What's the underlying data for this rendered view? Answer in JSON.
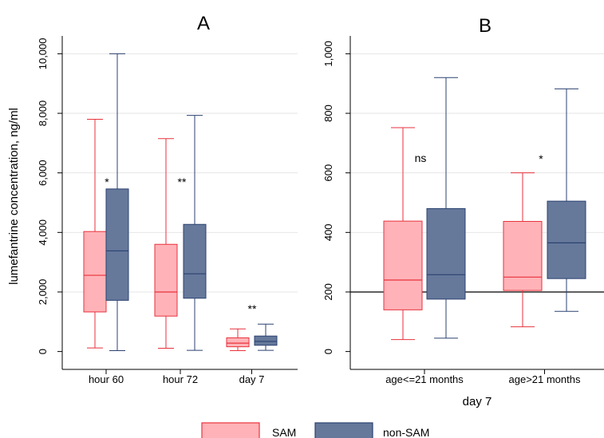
{
  "y_axis_label": "lumefantrine concentration, ng/ml",
  "legend": [
    {
      "label": "SAM",
      "fill": "#ffb3b8",
      "stroke": "#e8323c"
    },
    {
      "label": "non-SAM",
      "fill": "#66799b",
      "stroke": "#2c4270"
    }
  ],
  "colors": {
    "sam_fill": "#ffb3b8",
    "sam_line": "#e8323c",
    "nonsam_fill": "#66799b",
    "nonsam_line": "#2c4270",
    "grid": "#e6e6e6",
    "frame": "#000000",
    "reference_line": "#000000"
  },
  "chart_data": [
    {
      "type": "box",
      "title": "A",
      "xlabel": "",
      "ylabel": "lumefantrine concentration, ng/ml",
      "ylim": [
        -600,
        10600
      ],
      "yticks": [
        0,
        2000,
        4000,
        6000,
        8000,
        10000
      ],
      "ytick_labels": [
        "0",
        "2,000",
        "4,000",
        "6,000",
        "8,000",
        "10,000"
      ],
      "grid": true,
      "categories": [
        "hour 60",
        "hour 72",
        "day 7"
      ],
      "series": [
        {
          "name": "SAM",
          "boxes": [
            {
              "min": 120,
              "q1": 1330,
              "median": 2560,
              "q3": 4030,
              "max": 7800
            },
            {
              "min": 110,
              "q1": 1190,
              "median": 2000,
              "q3": 3600,
              "max": 7150
            },
            {
              "min": 30,
              "q1": 160,
              "median": 280,
              "q3": 460,
              "max": 760
            }
          ]
        },
        {
          "name": "non-SAM",
          "boxes": [
            {
              "min": 30,
              "q1": 1720,
              "median": 3380,
              "q3": 5460,
              "max": 10000
            },
            {
              "min": 40,
              "q1": 1790,
              "median": 2610,
              "q3": 4270,
              "max": 7930
            },
            {
              "min": 40,
              "q1": 210,
              "median": 340,
              "q3": 520,
              "max": 920
            }
          ]
        }
      ],
      "annotations": [
        "*",
        "**",
        "**"
      ]
    },
    {
      "type": "box",
      "title": "B",
      "xlabel": "day 7",
      "ylabel": "",
      "ylim": [
        -60,
        1060
      ],
      "yticks": [
        0,
        200,
        400,
        600,
        800,
        1000
      ],
      "ytick_labels": [
        "0",
        "200",
        "400",
        "600",
        "800",
        "1,000"
      ],
      "grid": true,
      "reference_line_y": 200,
      "categories": [
        "age<=21 months",
        "age>21 months"
      ],
      "series": [
        {
          "name": "SAM",
          "boxes": [
            {
              "min": 40,
              "q1": 140,
              "median": 240,
              "q3": 438,
              "max": 752
            },
            {
              "min": 83,
              "q1": 205,
              "median": 250,
              "q3": 437,
              "max": 600
            }
          ]
        },
        {
          "name": "non-SAM",
          "boxes": [
            {
              "min": 45,
              "q1": 176,
              "median": 258,
              "q3": 480,
              "max": 920
            },
            {
              "min": 135,
              "q1": 245,
              "median": 365,
              "q3": 505,
              "max": 882
            }
          ]
        }
      ],
      "annotations": [
        "ns",
        "*"
      ]
    }
  ]
}
